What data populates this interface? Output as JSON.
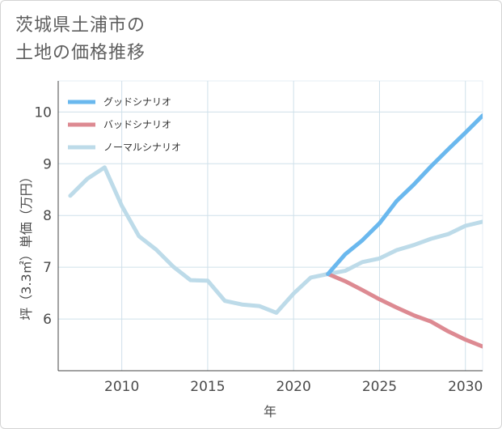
{
  "title_lines": [
    "茨城県土浦市の",
    "土地の価格推移"
  ],
  "chart_data": {
    "type": "line",
    "xlabel": "年",
    "ylabel": "坪（3.3㎡）単価（万円）",
    "xlim": [
      2006.3,
      2031
    ],
    "ylim": [
      5.0,
      10.6
    ],
    "x_ticks": [
      2010,
      2015,
      2020,
      2025,
      2030
    ],
    "y_ticks": [
      6,
      7,
      8,
      9,
      10
    ],
    "grid": true,
    "legend_position": "top-left",
    "series": [
      {
        "name": "グッドシナリオ",
        "color": "#6ab8ee",
        "x": [
          2022,
          2023,
          2024,
          2025,
          2026,
          2027,
          2028,
          2029,
          2030,
          2031
        ],
        "values": [
          6.87,
          7.25,
          7.52,
          7.85,
          8.28,
          8.6,
          8.95,
          9.28,
          9.6,
          9.93
        ]
      },
      {
        "name": "バッドシナリオ",
        "color": "#dd8a92",
        "x": [
          2022,
          2023,
          2024,
          2025,
          2026,
          2027,
          2028,
          2029,
          2030,
          2031
        ],
        "values": [
          6.87,
          6.73,
          6.56,
          6.38,
          6.22,
          6.07,
          5.95,
          5.76,
          5.6,
          5.47
        ]
      },
      {
        "name": "ノーマルシナリオ",
        "color": "#bddbe9",
        "x": [
          2007,
          2008,
          2009,
          2010,
          2011,
          2012,
          2013,
          2014,
          2015,
          2016,
          2017,
          2018,
          2019,
          2020,
          2021,
          2022,
          2023,
          2024,
          2025,
          2026,
          2027,
          2028,
          2029,
          2030,
          2031
        ],
        "values": [
          8.38,
          8.71,
          8.93,
          8.19,
          7.6,
          7.34,
          7.01,
          6.75,
          6.74,
          6.35,
          6.28,
          6.25,
          6.12,
          6.49,
          6.8,
          6.87,
          6.93,
          7.1,
          7.17,
          7.33,
          7.43,
          7.55,
          7.64,
          7.8,
          7.88
        ]
      }
    ]
  }
}
